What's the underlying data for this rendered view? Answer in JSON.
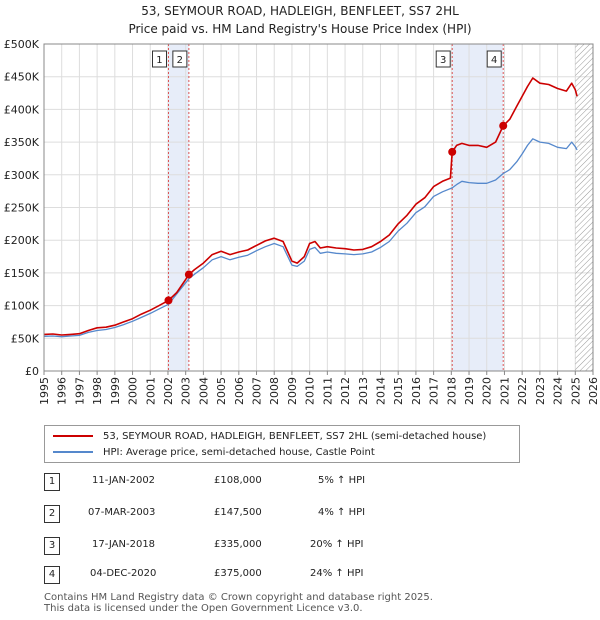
{
  "titles": {
    "line1": "53, SEYMOUR ROAD, HADLEIGH, BENFLEET, SS7 2HL",
    "line2": "Price paid vs. HM Land Registry's House Price Index (HPI)"
  },
  "chart_data": {
    "type": "line",
    "title": "53, SEYMOUR ROAD, HADLEIGH, BENFLEET, SS7 2HL — Price paid vs. HM Land Registry's House Price Index (HPI)",
    "xlim": [
      1995,
      2026
    ],
    "ylim": [
      0,
      500000
    ],
    "x_ticks": [
      "1995",
      "1996",
      "1997",
      "1998",
      "1999",
      "2000",
      "2001",
      "2002",
      "2003",
      "2004",
      "2005",
      "2006",
      "2007",
      "2008",
      "2009",
      "2010",
      "2011",
      "2012",
      "2013",
      "2014",
      "2015",
      "2016",
      "2017",
      "2018",
      "2019",
      "2020",
      "2021",
      "2022",
      "2023",
      "2024",
      "2025",
      "2026"
    ],
    "y_ticks": [
      {
        "value": 0,
        "label": "£0"
      },
      {
        "value": 50000,
        "label": "£50K"
      },
      {
        "value": 100000,
        "label": "£100K"
      },
      {
        "value": 150000,
        "label": "£150K"
      },
      {
        "value": 200000,
        "label": "£200K"
      },
      {
        "value": 250000,
        "label": "£250K"
      },
      {
        "value": 300000,
        "label": "£300K"
      },
      {
        "value": 350000,
        "label": "£350K"
      },
      {
        "value": 400000,
        "label": "£400K"
      },
      {
        "value": 450000,
        "label": "£450K"
      },
      {
        "value": 500000,
        "label": "£500K"
      }
    ],
    "colors": {
      "property": "#cc0000",
      "hpi": "#5588cc",
      "band": "#dde6f7",
      "marker_line": "#dd5555"
    },
    "hatch_from": 2025.0,
    "series": [
      {
        "name": "53, SEYMOUR ROAD, HADLEIGH, BENFLEET, SS7 2HL (semi-detached house)",
        "key": "property",
        "points": [
          [
            1995.0,
            56000
          ],
          [
            1995.5,
            56500
          ],
          [
            1996.0,
            55000
          ],
          [
            1996.5,
            56000
          ],
          [
            1997.0,
            57000
          ],
          [
            1997.5,
            62000
          ],
          [
            1998.0,
            66000
          ],
          [
            1998.5,
            67000
          ],
          [
            1999.0,
            70000
          ],
          [
            1999.5,
            75000
          ],
          [
            2000.0,
            80000
          ],
          [
            2000.5,
            87000
          ],
          [
            2001.0,
            93000
          ],
          [
            2001.5,
            100000
          ],
          [
            2002.03,
            108000
          ],
          [
            2002.5,
            120000
          ],
          [
            2003.0,
            140000
          ],
          [
            2003.18,
            147500
          ],
          [
            2003.5,
            155000
          ],
          [
            2004.0,
            165000
          ],
          [
            2004.5,
            178000
          ],
          [
            2005.0,
            183000
          ],
          [
            2005.5,
            178000
          ],
          [
            2006.0,
            182000
          ],
          [
            2006.5,
            185000
          ],
          [
            2007.0,
            192000
          ],
          [
            2007.5,
            199000
          ],
          [
            2008.0,
            203000
          ],
          [
            2008.5,
            198000
          ],
          [
            2009.0,
            168000
          ],
          [
            2009.3,
            165000
          ],
          [
            2009.7,
            175000
          ],
          [
            2010.0,
            195000
          ],
          [
            2010.3,
            198000
          ],
          [
            2010.6,
            188000
          ],
          [
            2011.0,
            190000
          ],
          [
            2011.5,
            188000
          ],
          [
            2012.0,
            187000
          ],
          [
            2012.5,
            185000
          ],
          [
            2013.0,
            186000
          ],
          [
            2013.5,
            190000
          ],
          [
            2014.0,
            198000
          ],
          [
            2014.5,
            208000
          ],
          [
            2015.0,
            225000
          ],
          [
            2015.5,
            238000
          ],
          [
            2016.0,
            255000
          ],
          [
            2016.5,
            265000
          ],
          [
            2017.0,
            282000
          ],
          [
            2017.5,
            290000
          ],
          [
            2017.95,
            295000
          ],
          [
            2018.05,
            335000
          ],
          [
            2018.3,
            345000
          ],
          [
            2018.6,
            348000
          ],
          [
            2019.0,
            345000
          ],
          [
            2019.5,
            345000
          ],
          [
            2020.0,
            342000
          ],
          [
            2020.5,
            350000
          ],
          [
            2020.93,
            375000
          ],
          [
            2021.3,
            385000
          ],
          [
            2021.7,
            405000
          ],
          [
            2022.0,
            420000
          ],
          [
            2022.3,
            435000
          ],
          [
            2022.6,
            448000
          ],
          [
            2023.0,
            440000
          ],
          [
            2023.5,
            438000
          ],
          [
            2024.0,
            432000
          ],
          [
            2024.5,
            428000
          ],
          [
            2024.8,
            440000
          ],
          [
            2025.0,
            430000
          ],
          [
            2025.1,
            420000
          ]
        ]
      },
      {
        "name": "HPI: Average price, semi-detached house, Castle Point",
        "key": "hpi",
        "points": [
          [
            1995.0,
            53000
          ],
          [
            1995.5,
            53500
          ],
          [
            1996.0,
            52500
          ],
          [
            1996.5,
            53500
          ],
          [
            1997.0,
            54500
          ],
          [
            1997.5,
            59000
          ],
          [
            1998.0,
            62000
          ],
          [
            1998.5,
            63500
          ],
          [
            1999.0,
            66500
          ],
          [
            1999.5,
            71000
          ],
          [
            2000.0,
            76000
          ],
          [
            2000.5,
            82000
          ],
          [
            2001.0,
            88000
          ],
          [
            2001.5,
            95000
          ],
          [
            2002.03,
            102000
          ],
          [
            2002.5,
            118000
          ],
          [
            2003.0,
            135000
          ],
          [
            2003.18,
            141000
          ],
          [
            2003.5,
            148000
          ],
          [
            2004.0,
            158000
          ],
          [
            2004.5,
            170000
          ],
          [
            2005.0,
            175000
          ],
          [
            2005.5,
            170000
          ],
          [
            2006.0,
            174000
          ],
          [
            2006.5,
            177000
          ],
          [
            2007.0,
            184000
          ],
          [
            2007.5,
            190000
          ],
          [
            2008.0,
            195000
          ],
          [
            2008.5,
            190000
          ],
          [
            2009.0,
            162000
          ],
          [
            2009.3,
            160000
          ],
          [
            2009.7,
            168000
          ],
          [
            2010.0,
            186000
          ],
          [
            2010.3,
            189000
          ],
          [
            2010.6,
            180000
          ],
          [
            2011.0,
            182000
          ],
          [
            2011.5,
            180000
          ],
          [
            2012.0,
            179000
          ],
          [
            2012.5,
            178000
          ],
          [
            2013.0,
            179000
          ],
          [
            2013.5,
            182000
          ],
          [
            2014.0,
            189000
          ],
          [
            2014.5,
            198000
          ],
          [
            2015.0,
            214000
          ],
          [
            2015.5,
            226000
          ],
          [
            2016.0,
            242000
          ],
          [
            2016.5,
            251000
          ],
          [
            2017.0,
            267000
          ],
          [
            2017.5,
            274000
          ],
          [
            2018.05,
            280000
          ],
          [
            2018.3,
            285000
          ],
          [
            2018.6,
            290000
          ],
          [
            2019.0,
            288000
          ],
          [
            2019.5,
            287000
          ],
          [
            2020.0,
            287000
          ],
          [
            2020.5,
            292000
          ],
          [
            2020.93,
            302000
          ],
          [
            2021.3,
            308000
          ],
          [
            2021.7,
            320000
          ],
          [
            2022.0,
            332000
          ],
          [
            2022.3,
            345000
          ],
          [
            2022.6,
            355000
          ],
          [
            2023.0,
            350000
          ],
          [
            2023.5,
            348000
          ],
          [
            2024.0,
            342000
          ],
          [
            2024.5,
            340000
          ],
          [
            2024.8,
            350000
          ],
          [
            2025.0,
            343000
          ],
          [
            2025.1,
            338000
          ]
        ]
      }
    ],
    "sales": [
      {
        "id": "1",
        "label": "1",
        "x": 2002.03,
        "y": 108000
      },
      {
        "id": "2",
        "label": "2",
        "x": 2003.18,
        "y": 147500
      },
      {
        "id": "3",
        "label": "3",
        "x": 2018.05,
        "y": 335000
      },
      {
        "id": "4",
        "label": "4",
        "x": 2020.93,
        "y": 375000
      }
    ],
    "bands": [
      {
        "from": 2002.03,
        "to": 2003.18
      },
      {
        "from": 2018.05,
        "to": 2020.93
      }
    ]
  },
  "legend": {
    "property_label": "53, SEYMOUR ROAD, HADLEIGH, BENFLEET, SS7 2HL (semi-detached house)",
    "hpi_label": "HPI: Average price, semi-detached house, Castle Point"
  },
  "transactions": [
    {
      "num": "1",
      "date": "11-JAN-2002",
      "price": "£108,000",
      "hpi": "5% ↑ HPI"
    },
    {
      "num": "2",
      "date": "07-MAR-2003",
      "price": "£147,500",
      "hpi": "4% ↑ HPI"
    },
    {
      "num": "3",
      "date": "17-JAN-2018",
      "price": "£335,000",
      "hpi": "20% ↑ HPI"
    },
    {
      "num": "4",
      "date": "04-DEC-2020",
      "price": "£375,000",
      "hpi": "24% ↑ HPI"
    }
  ],
  "footer": {
    "line1": "Contains HM Land Registry data © Crown copyright and database right 2025.",
    "line2": "This data is licensed under the Open Government Licence v3.0."
  }
}
